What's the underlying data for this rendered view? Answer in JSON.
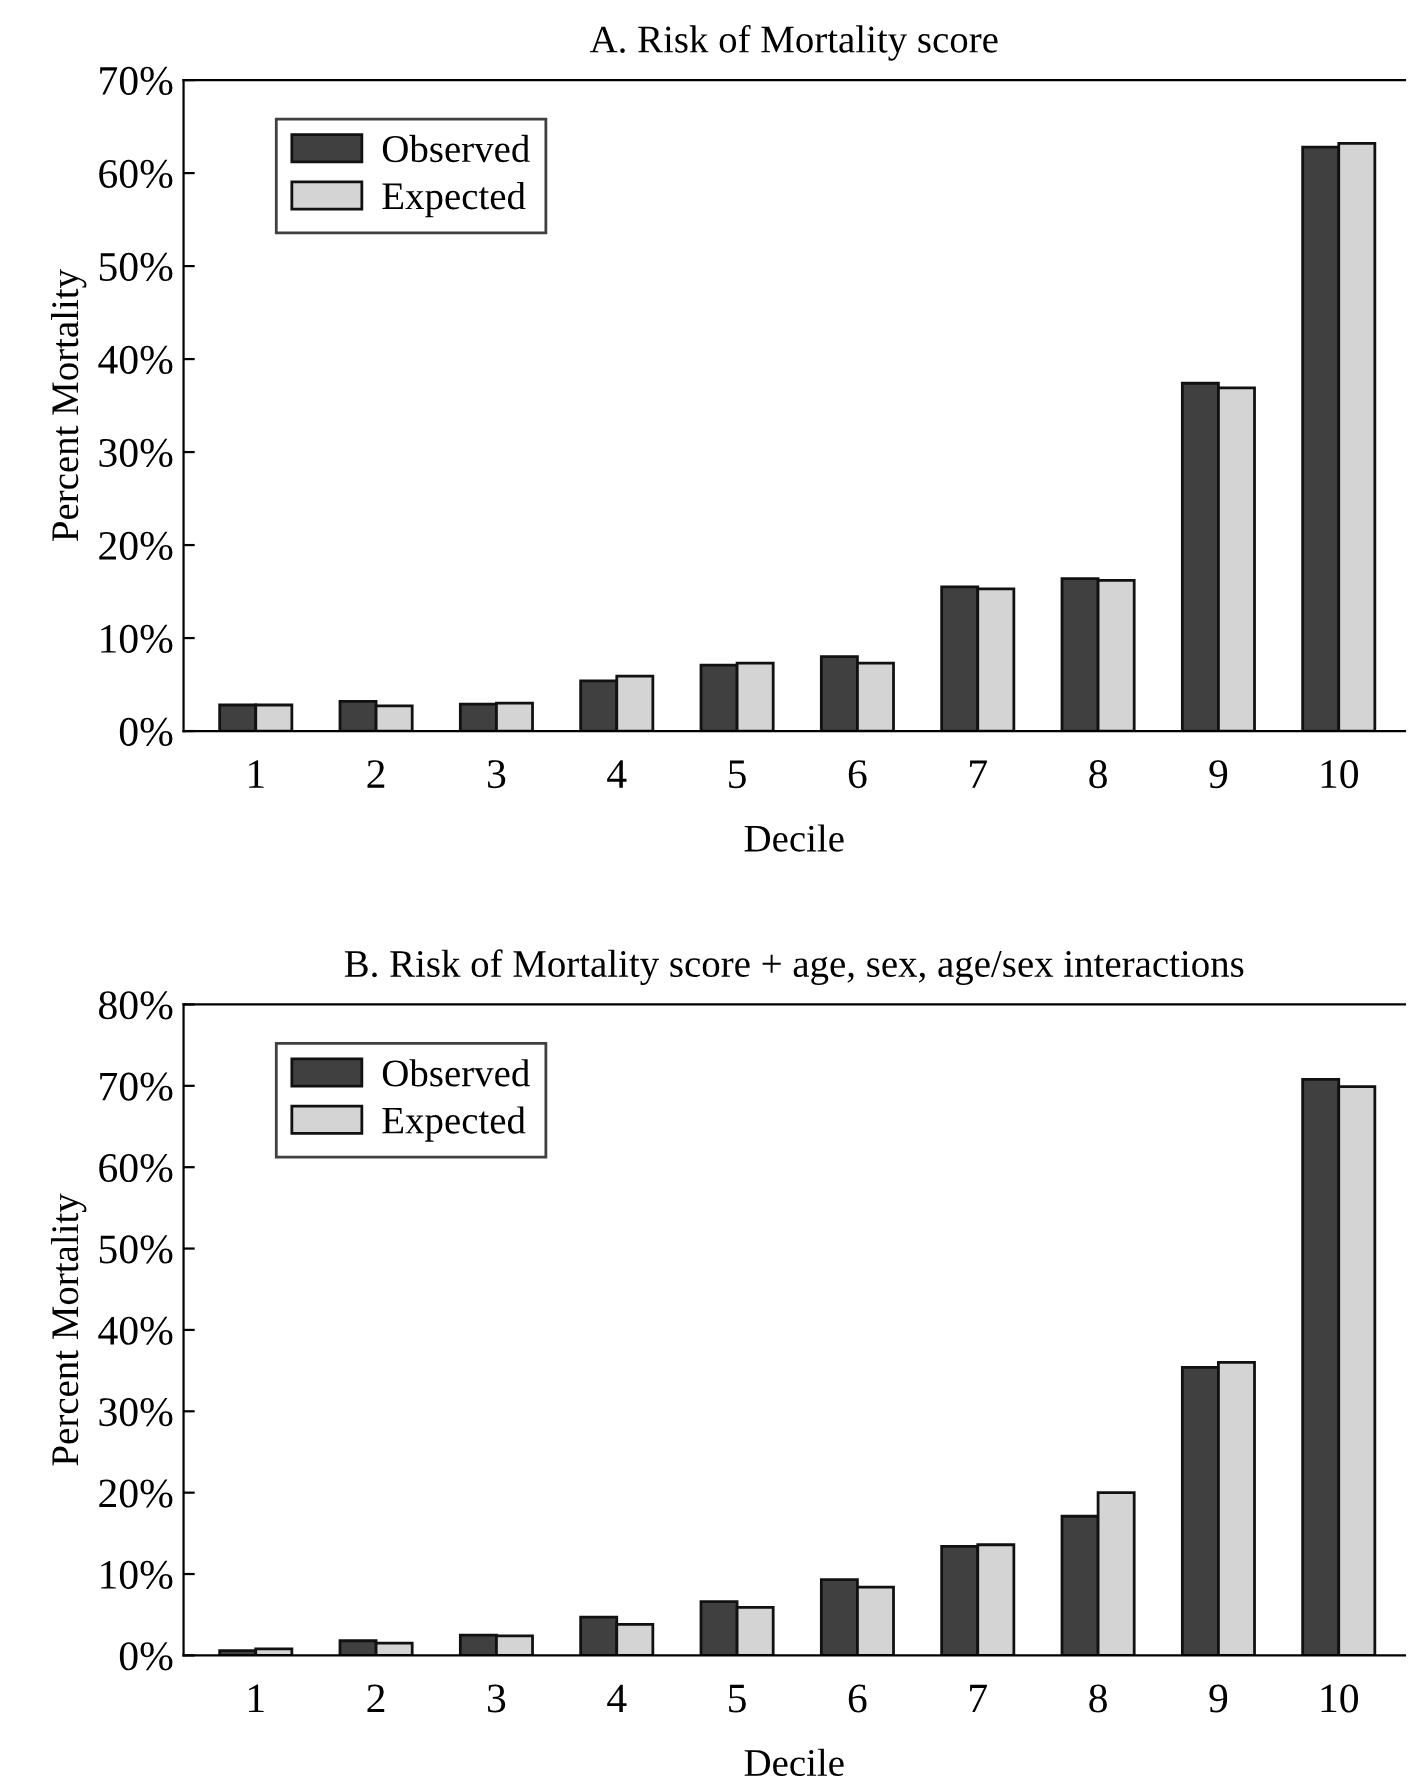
{
  "chart_data": [
    {
      "type": "bar",
      "title": "A. Risk of Mortality score",
      "xlabel": "Decile",
      "ylabel": "Percent Mortality",
      "categories": [
        "1",
        "2",
        "3",
        "4",
        "5",
        "6",
        "7",
        "8",
        "9",
        "10"
      ],
      "series": [
        {
          "name": "Observed",
          "color": "#404040",
          "values": [
            2.8,
            3.2,
            2.9,
            5.4,
            7.1,
            8.0,
            15.5,
            16.4,
            37.4,
            62.8
          ]
        },
        {
          "name": "Expected",
          "color": "#d4d4d4",
          "values": [
            2.8,
            2.7,
            3.0,
            5.9,
            7.3,
            7.3,
            15.3,
            16.2,
            36.9,
            63.2
          ]
        }
      ],
      "ylim": [
        0,
        70
      ],
      "yticks": [
        {
          "value": 0,
          "label": "0%"
        },
        {
          "value": 10,
          "label": "10%"
        },
        {
          "value": 20,
          "label": "20%"
        },
        {
          "value": 30,
          "label": "30%"
        },
        {
          "value": 40,
          "label": "40%"
        },
        {
          "value": 50,
          "label": "50%"
        },
        {
          "value": 60,
          "label": "60%"
        },
        {
          "value": 70,
          "label": "70%"
        }
      ],
      "grid": false,
      "legend": "top left"
    },
    {
      "type": "bar",
      "title": "B. Risk of Mortality score + age, sex, age/sex interactions",
      "xlabel": "Decile",
      "ylabel": "Percent Mortality",
      "categories": [
        "1",
        "2",
        "3",
        "4",
        "5",
        "6",
        "7",
        "8",
        "9",
        "10"
      ],
      "series": [
        {
          "name": "Observed",
          "color": "#404040",
          "values": [
            0.6,
            1.8,
            2.5,
            4.7,
            6.6,
            9.3,
            13.4,
            17.1,
            35.4,
            70.8
          ]
        },
        {
          "name": "Expected",
          "color": "#d4d4d4",
          "values": [
            0.8,
            1.5,
            2.4,
            3.8,
            5.9,
            8.4,
            13.6,
            20.0,
            36.0,
            69.9
          ]
        }
      ],
      "ylim": [
        0,
        80
      ],
      "yticks": [
        {
          "value": 0,
          "label": "0%"
        },
        {
          "value": 10,
          "label": "10%"
        },
        {
          "value": 20,
          "label": "20%"
        },
        {
          "value": 30,
          "label": "30%"
        },
        {
          "value": 40,
          "label": "40%"
        },
        {
          "value": 50,
          "label": "50%"
        },
        {
          "value": 60,
          "label": "60%"
        },
        {
          "value": 70,
          "label": "70%"
        },
        {
          "value": 80,
          "label": "80%"
        }
      ],
      "grid": false,
      "legend": "top left"
    }
  ]
}
